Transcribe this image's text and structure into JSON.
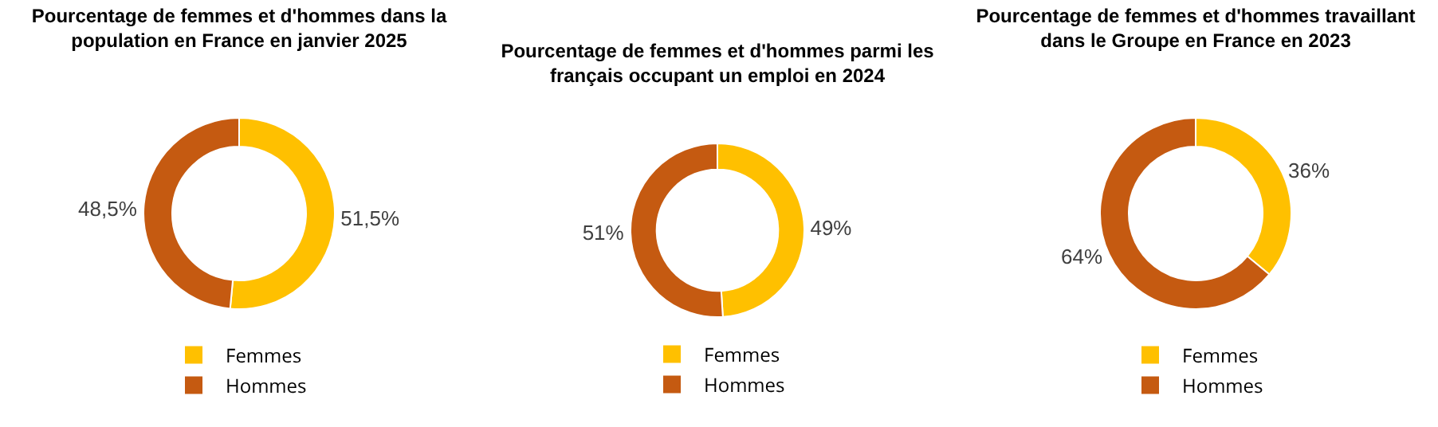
{
  "chart_data": [
    {
      "type": "donut",
      "title": "Pourcentage de femmes et d'hommes dans la population en France en janvier 2025",
      "categories": [
        "Femmes",
        "Hommes"
      ],
      "values": [
        51.5,
        48.5
      ],
      "colors": [
        "#ffc000",
        "#c55a11"
      ],
      "value_labels": [
        "51,5%",
        "48,5%"
      ],
      "legend": "bottom"
    },
    {
      "type": "donut",
      "title": "Pourcentage de femmes et d'hommes parmi les français occupant un emploi en 2024",
      "categories": [
        "Femmes",
        "Hommes"
      ],
      "values": [
        49,
        51
      ],
      "colors": [
        "#ffc000",
        "#c55a11"
      ],
      "value_labels": [
        "49%",
        "51%"
      ],
      "legend": "bottom"
    },
    {
      "type": "donut",
      "title": "Pourcentage de femmes et d'hommes travaillant dans le Groupe en France en 2023",
      "categories": [
        "Femmes",
        "Hommes"
      ],
      "values": [
        36,
        64
      ],
      "colors": [
        "#ffc000",
        "#c55a11"
      ],
      "value_labels": [
        "36%",
        "64%"
      ],
      "legend": "bottom"
    }
  ]
}
